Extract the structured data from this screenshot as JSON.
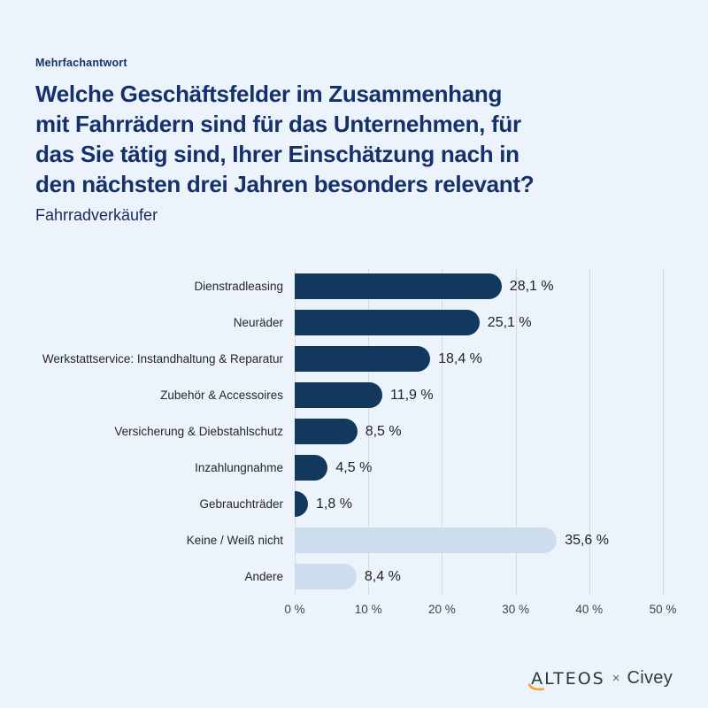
{
  "page": {
    "kicker": "Mehrfachantwort",
    "title_lines": [
      "Welche Geschäftsfelder im Zusammenhang",
      "mit Fahrrädern sind für das Unternehmen, für",
      "das Sie tätig sind, Ihrer Einschätzung nach in",
      "den nächsten drei Jahren besonders relevant?"
    ],
    "subtitle": "Fahrradverkäufer"
  },
  "chart_data": {
    "type": "bar",
    "orientation": "horizontal",
    "title": "Welche Geschäftsfelder im Zusammenhang mit Fahrrädern sind für das Unternehmen, für das Sie tätig sind, Ihrer Einschätzung nach in den nächsten drei Jahren besonders relevant?",
    "subtitle": "Fahrradverkäufer",
    "note": "Mehrfachantwort",
    "categories": [
      "Dienstradleasing",
      "Neuräder",
      "Werkstattservice: Instandhaltung & Reparatur",
      "Zubehör & Accessoires",
      "Versicherung & Diebstahlschutz",
      "Inzahlungnahme",
      "Gebrauchträder",
      "Keine / Weiß nicht",
      "Andere"
    ],
    "values": [
      28.1,
      25.1,
      18.4,
      11.9,
      8.5,
      4.5,
      1.8,
      35.6,
      8.4
    ],
    "value_labels": [
      "28,1 %",
      "25,1 %",
      "18,4 %",
      "11,9 %",
      "8,5 %",
      "4,5 %",
      "1,8 %",
      "35,6 %",
      "8,4 %"
    ],
    "bar_styles": [
      "dark",
      "dark",
      "dark",
      "dark",
      "dark",
      "dark",
      "dark",
      "light",
      "light"
    ],
    "x_ticks": [
      "0 %",
      "10 %",
      "20 %",
      "30 %",
      "40 %",
      "50 %"
    ],
    "x_tick_values": [
      0,
      10,
      20,
      30,
      40,
      50
    ],
    "xlim": [
      0,
      50
    ],
    "grid": true,
    "legend": false,
    "colors": {
      "dark_bar": "#13385E",
      "light_bar": "#CDDDF0",
      "title_text": "#14316B",
      "gridline": "#D6DADF",
      "background": "#EDF3FB"
    }
  },
  "footer": {
    "brand_left": "ALTEOS",
    "separator": "×",
    "brand_right": "Civey",
    "swoosh_color": "#F0A43B"
  }
}
